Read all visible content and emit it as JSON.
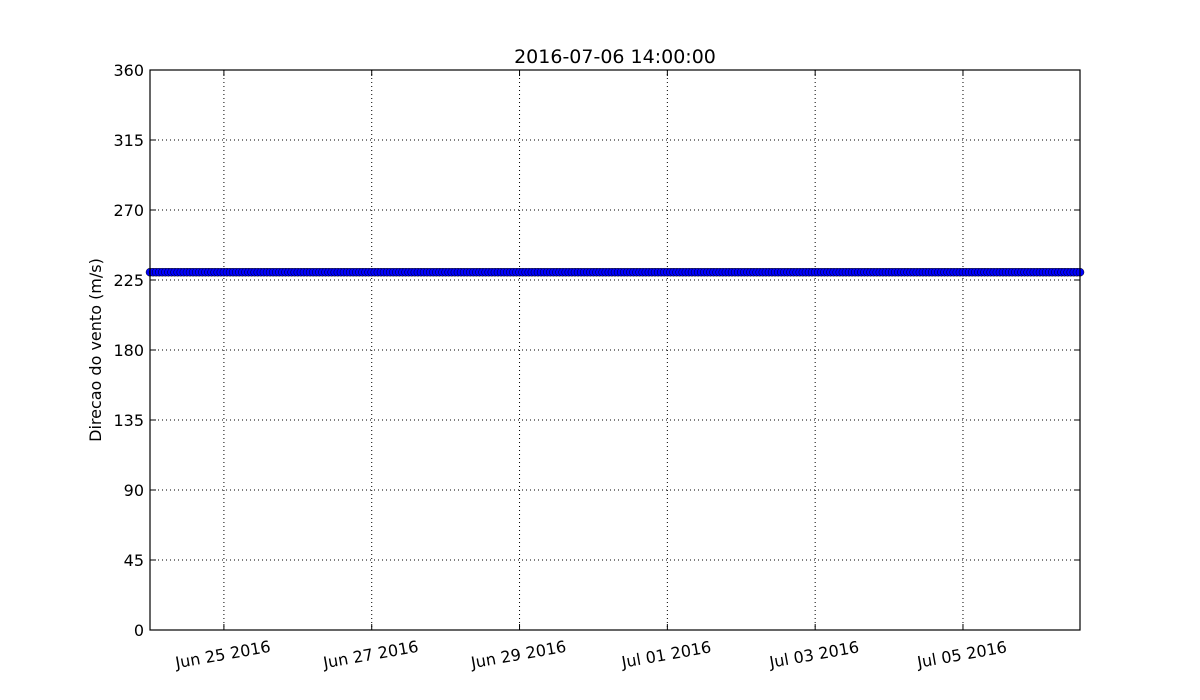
{
  "chart_data": {
    "type": "scatter",
    "title": "2016-07-06 14:00:00",
    "xlabel": "",
    "ylabel": "Direcao do vento (m/s)",
    "ylim": [
      0,
      360
    ],
    "xlim": [
      "2016-06-24",
      "2016-07-06T14:00:00"
    ],
    "yticks": [
      0,
      45,
      90,
      135,
      180,
      225,
      270,
      315,
      360
    ],
    "ytick_labels": [
      "0",
      "45",
      "90",
      "135",
      "180",
      "225",
      "270",
      "315",
      "360"
    ],
    "xticks": [
      "2016-06-25",
      "2016-06-27",
      "2016-06-29",
      "2016-07-01",
      "2016-07-03",
      "2016-07-05"
    ],
    "xtick_labels": [
      "Jun 25 2016",
      "Jun 27 2016",
      "Jun 29 2016",
      "Jul 01 2016",
      "Jul 03 2016",
      "Jul 05 2016"
    ],
    "grid": true,
    "series": [
      {
        "color": "#0000ff",
        "marker": "circle",
        "x_start": "2016-06-24",
        "x_end": "2016-07-06T14:00:00",
        "interval_hours": 1,
        "value": 230
      }
    ]
  }
}
